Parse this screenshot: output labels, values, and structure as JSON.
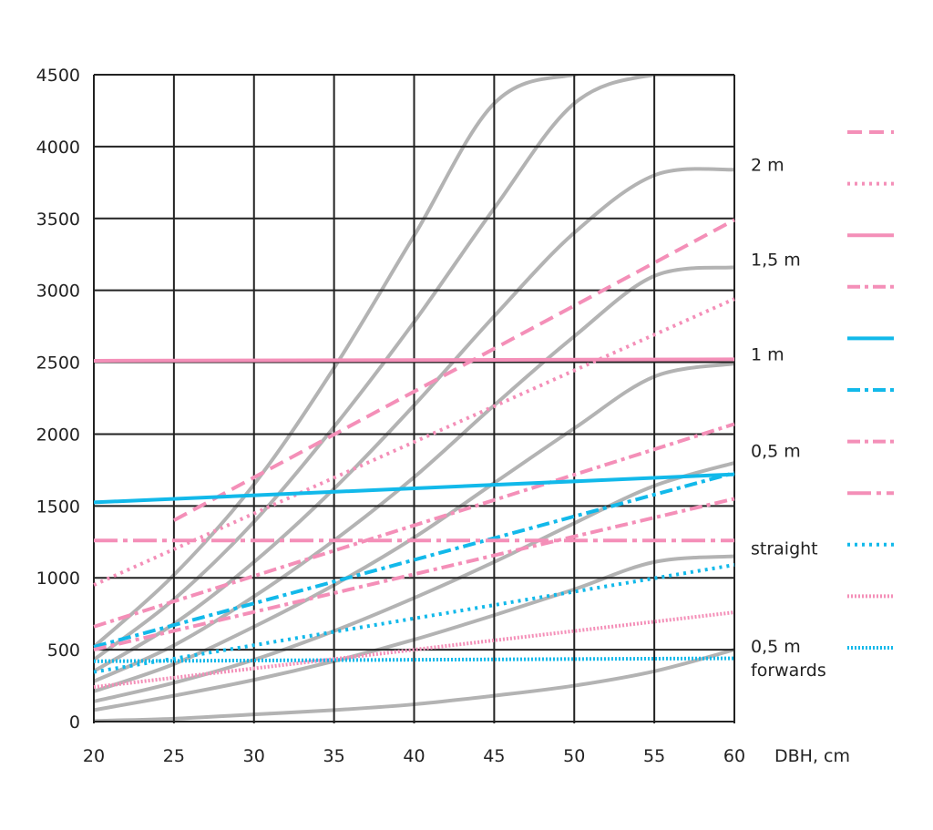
{
  "chart_data": {
    "type": "line",
    "xlabel": "DBH, cm",
    "ylabel": "",
    "xlim": [
      20,
      60
    ],
    "ylim": [
      0,
      4500
    ],
    "xticks": [
      20,
      25,
      30,
      35,
      40,
      45,
      50,
      55,
      60
    ],
    "yticks": [
      0,
      500,
      1000,
      1500,
      2000,
      2500,
      3000,
      3500,
      4000,
      4500
    ],
    "grid": true,
    "side_labels": [
      {
        "text": [
          "2 m"
        ],
        "y_value": 3870
      },
      {
        "text": [
          "1,5 m"
        ],
        "y_value": 3210
      },
      {
        "text": [
          "1 m"
        ],
        "y_value": 2550
      },
      {
        "text": [
          "0,5 m"
        ],
        "y_value": 1880
      },
      {
        "text": [
          "straight"
        ],
        "y_value": 1200
      },
      {
        "text": [
          "0,5 m",
          "forwards"
        ],
        "y_value": 520
      }
    ],
    "reference_curves": {
      "color": "#b3b3b3",
      "x": [
        20,
        25,
        30,
        35,
        40,
        45,
        50,
        55,
        60
      ],
      "series": [
        {
          "values": [
            5,
            20,
            50,
            80,
            120,
            180,
            250,
            350,
            500
          ]
        },
        {
          "values": [
            80,
            180,
            290,
            420,
            570,
            740,
            920,
            1110,
            1150
          ]
        },
        {
          "values": [
            140,
            270,
            430,
            630,
            860,
            1110,
            1380,
            1640,
            1800
          ]
        },
        {
          "values": [
            210,
            400,
            660,
            950,
            1280,
            1660,
            2040,
            2400,
            2490
          ]
        },
        {
          "values": [
            280,
            530,
            870,
            1260,
            1700,
            2200,
            2680,
            3100,
            3160
          ]
        },
        {
          "values": [
            350,
            680,
            1110,
            1620,
            2200,
            2820,
            3400,
            3800,
            3840
          ]
        },
        {
          "values": [
            430,
            850,
            1390,
            2050,
            2780,
            3570,
            4300,
            4500,
            4500
          ]
        },
        {
          "values": [
            520,
            1020,
            1650,
            2460,
            3380,
            4300,
            4500,
            4500,
            4500
          ]
        }
      ]
    },
    "series": [
      {
        "name": "pink-dashed",
        "color": "#f48fb8",
        "style": "dashed",
        "x": [
          25,
          60
        ],
        "values": [
          1400,
          3490
        ]
      },
      {
        "name": "pink-dotted",
        "color": "#f48fb8",
        "style": "dotted",
        "x": [
          20,
          60
        ],
        "values": [
          950,
          2940
        ]
      },
      {
        "name": "pink-solid",
        "color": "#f48fb8",
        "style": "solid",
        "x": [
          20,
          60
        ],
        "values": [
          2510,
          2520
        ]
      },
      {
        "name": "pink-dashdot",
        "color": "#f48fb8",
        "style": "dashdot",
        "x": [
          20,
          60
        ],
        "values": [
          660,
          2070
        ]
      },
      {
        "name": "blue-solid",
        "color": "#12b9ea",
        "style": "solid",
        "x": [
          20,
          60
        ],
        "values": [
          1525,
          1720
        ]
      },
      {
        "name": "blue-dashdot",
        "color": "#12b9ea",
        "style": "dashdot",
        "x": [
          20,
          60
        ],
        "values": [
          520,
          1730
        ]
      },
      {
        "name": "pink-dashdot-2",
        "color": "#f48fb8",
        "style": "dashdot",
        "x": [
          20,
          60
        ],
        "values": [
          500,
          1550
        ]
      },
      {
        "name": "pink-longdashdot",
        "color": "#f48fb8",
        "style": "longdashdot",
        "x": [
          20,
          60
        ],
        "values": [
          1260,
          1260
        ]
      },
      {
        "name": "blue-dotted",
        "color": "#12b9ea",
        "style": "dotted",
        "x": [
          20,
          60
        ],
        "values": [
          345,
          1090
        ]
      },
      {
        "name": "pink-dense-dotted",
        "color": "#f48fb8",
        "style": "densedot",
        "x": [
          20,
          60
        ],
        "values": [
          240,
          760
        ]
      },
      {
        "name": "blue-dense-dotted",
        "color": "#12b9ea",
        "style": "densedot",
        "x": [
          20,
          60
        ],
        "values": [
          420,
          440
        ]
      }
    ]
  }
}
